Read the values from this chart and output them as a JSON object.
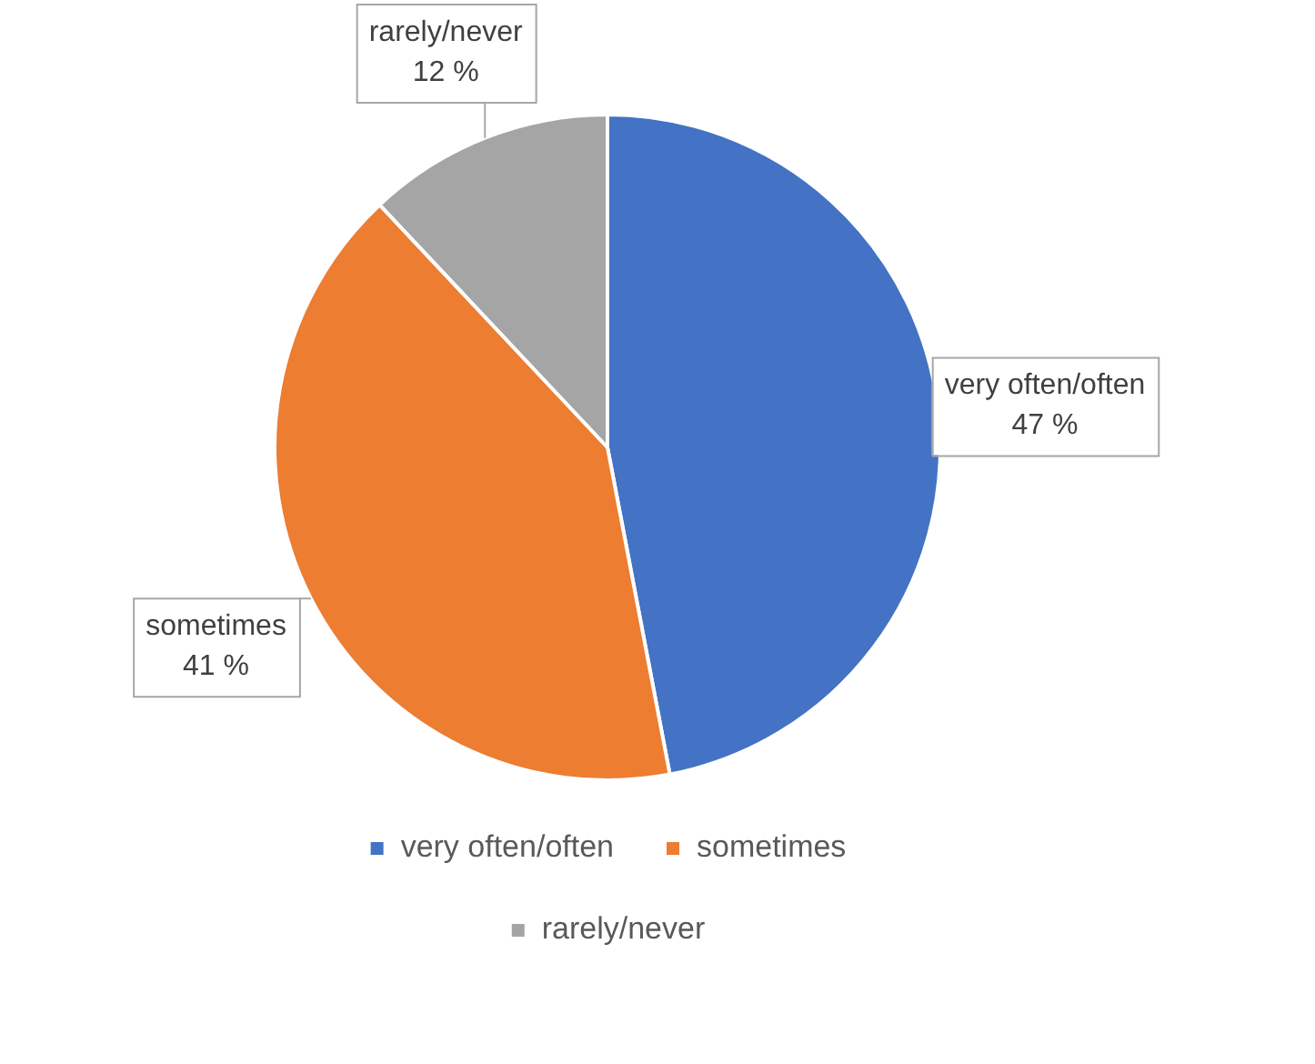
{
  "chart_data": {
    "type": "pie",
    "categories": [
      "very often/often",
      "sometimes",
      "rarely/never"
    ],
    "values": [
      47,
      41,
      12
    ],
    "value_labels": [
      "47 %",
      "41 %",
      "12 %"
    ],
    "colors": [
      "#4472c4",
      "#ed7d31",
      "#a5a5a5"
    ],
    "legend": "bottom"
  }
}
